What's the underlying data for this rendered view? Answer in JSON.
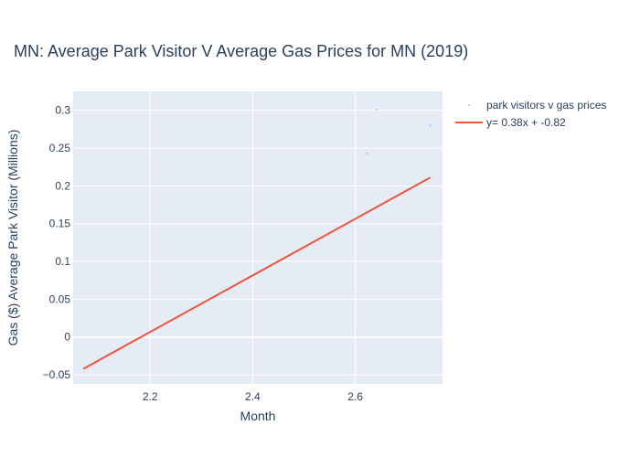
{
  "chart_data": {
    "type": "scatter",
    "title": "MN: Average Park Visitor V Average Gas Prices for MN (2019)",
    "xlabel": "Month",
    "ylabel": "Gas ($) Average Park Visitor (Millions)",
    "xlim": [
      2.05,
      2.77
    ],
    "ylim": [
      -0.062,
      0.325
    ],
    "xticks": [
      "2.2",
      "2.4",
      "2.6"
    ],
    "xtick_values": [
      2.2,
      2.4,
      2.6
    ],
    "yticks": [
      "−0.05",
      "0",
      "0.05",
      "0.1",
      "0.15",
      "0.2",
      "0.25",
      "0.3"
    ],
    "ytick_values": [
      -0.05,
      0,
      0.05,
      0.1,
      0.15,
      0.2,
      0.25,
      0.3
    ],
    "grid": true,
    "legend_position": "top-right",
    "colors": {
      "plot_bg": "#E5ECF6",
      "grid": "#ffffff",
      "markers": "#636efa",
      "fit_line": "#EF553B"
    },
    "series": [
      {
        "name": "park visitors v gas prices",
        "mode": "markers",
        "points": [
          {
            "x": 2.623,
            "y": 0.243
          },
          {
            "x": 2.641,
            "y": 0.301
          },
          {
            "x": 2.746,
            "y": 0.28
          }
        ]
      },
      {
        "name": " y= 0.38x + -0.82",
        "mode": "line",
        "points": [
          {
            "x": 2.07,
            "y": -0.042
          },
          {
            "x": 2.746,
            "y": 0.211
          }
        ]
      }
    ]
  }
}
